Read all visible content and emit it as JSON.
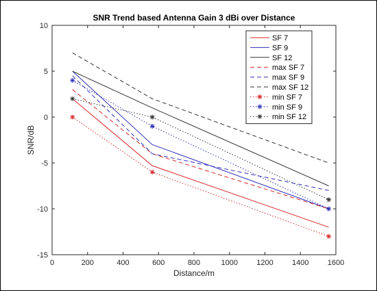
{
  "chart_data": {
    "type": "line",
    "title": "SNR Trend based Antenna Gain 3 dBi over Distance",
    "xlabel": "Distance/m",
    "ylabel": "SNR/dB",
    "xlim": [
      0,
      1600
    ],
    "ylim": [
      -15,
      10
    ],
    "xticks": [
      0,
      200,
      400,
      600,
      800,
      1000,
      1200,
      1400,
      1600
    ],
    "yticks": [
      -15,
      -10,
      -5,
      0,
      5,
      10
    ],
    "x": [
      115,
      565,
      1560
    ],
    "grid": false,
    "legend_position": "top-right",
    "series": [
      {
        "name": "SF 7",
        "values": [
          2,
          -5.3,
          -12
        ],
        "color": "#d62728",
        "dash": "solid",
        "marker": "none"
      },
      {
        "name": "SF 9",
        "values": [
          5,
          -3,
          -10
        ],
        "color": "#2f2fb8",
        "dash": "solid",
        "marker": "none"
      },
      {
        "name": "SF 12",
        "values": [
          5,
          1,
          -7.5
        ],
        "color": "#333333",
        "dash": "solid",
        "marker": "none"
      },
      {
        "name": "max SF 7",
        "values": [
          3,
          -4,
          -10
        ],
        "color": "#d62728",
        "dash": "dashed",
        "marker": "none"
      },
      {
        "name": "max SF 9",
        "values": [
          4.5,
          -4,
          -8
        ],
        "color": "#2f2fb8",
        "dash": "dashed",
        "marker": "none"
      },
      {
        "name": "max SF 12",
        "values": [
          7,
          2,
          -5
        ],
        "color": "#333333",
        "dash": "dashed",
        "marker": "none"
      },
      {
        "name": "min SF 7",
        "values": [
          0,
          -6,
          -13
        ],
        "color": "#d62728",
        "dash": "dotted",
        "marker": "star"
      },
      {
        "name": "min SF 9",
        "values": [
          4,
          -1,
          -10
        ],
        "color": "#2f2fb8",
        "dash": "dotted",
        "marker": "star"
      },
      {
        "name": "min SF 12",
        "values": [
          2,
          0,
          -9
        ],
        "color": "#333333",
        "dash": "dotted",
        "marker": "star"
      }
    ]
  }
}
